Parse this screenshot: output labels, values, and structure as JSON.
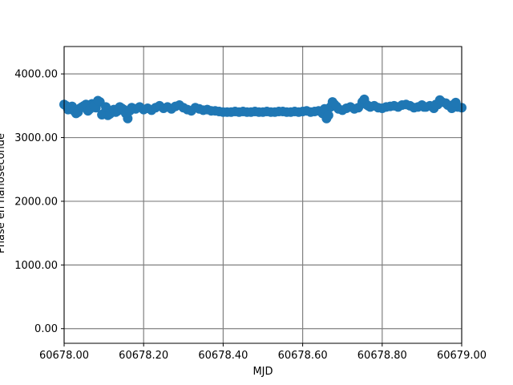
{
  "chart_data": {
    "type": "scatter",
    "title": "",
    "xlabel": "MJD",
    "ylabel": "Phase en nanoseconde",
    "xlim": [
      60678.0,
      60679.0
    ],
    "ylim": [
      -230,
      4430
    ],
    "xticks": [
      60678.0,
      60678.2,
      60678.4,
      60678.6,
      60678.8,
      60679.0
    ],
    "xtick_labels": [
      "60678.00",
      "60678.20",
      "60678.40",
      "60678.60",
      "60678.80",
      "60679.00"
    ],
    "yticks": [
      0,
      1000,
      2000,
      3000,
      4000
    ],
    "ytick_labels": [
      "0.00",
      "1000.00",
      "2000.00",
      "3000.00",
      "4000.00"
    ],
    "grid": true,
    "colors": {
      "marker": "#1f77b4",
      "grid": "#808080",
      "axes": "#000000"
    },
    "series": [
      {
        "x": [
          60678.0,
          60678.01,
          60678.02,
          60678.03,
          60678.04,
          60678.05,
          60678.06,
          60678.07,
          60678.08,
          60678.09,
          60678.1,
          60678.11,
          60678.12,
          60678.13,
          60678.14,
          60678.15,
          60678.16,
          60678.17,
          60678.18,
          60678.19,
          60678.2,
          60678.21,
          60678.22,
          60678.23,
          60678.24,
          60678.25,
          60678.26,
          60678.27,
          60678.28,
          60678.29,
          60678.3,
          60678.31,
          60678.32,
          60678.33,
          60678.34,
          60678.35,
          60678.36,
          60678.37,
          60678.38,
          60678.39,
          60678.4,
          60678.41,
          60678.42,
          60678.43,
          60678.44,
          60678.45,
          60678.46,
          60678.47,
          60678.48,
          60678.49,
          60678.5,
          60678.51,
          60678.52,
          60678.53,
          60678.54,
          60678.55,
          60678.56,
          60678.57,
          60678.58,
          60678.59,
          60678.6,
          60678.61,
          60678.62,
          60678.63,
          60678.64,
          60678.65,
          60678.66,
          60678.67,
          60678.68,
          60678.69,
          60678.7,
          60678.71,
          60678.72,
          60678.73,
          60678.74,
          60678.75,
          60678.76,
          60678.77,
          60678.78,
          60678.79,
          60678.8,
          60678.81,
          60678.82,
          60678.83,
          60678.84,
          60678.85,
          60678.86,
          60678.87,
          60678.88,
          60678.89,
          60678.9,
          60678.91,
          60678.92,
          60678.93,
          60678.94,
          60678.95,
          60678.96,
          60678.97,
          60678.98,
          60678.99,
          60679.0,
          60678.005,
          60678.015,
          60678.025,
          60678.035,
          60678.045,
          60678.055,
          60678.065,
          60678.075,
          60678.085,
          60678.095,
          60678.105,
          60678.115,
          60678.125,
          60678.135,
          60678.145,
          60678.155,
          60678.165,
          60678.655,
          60678.665,
          60678.675,
          60678.685,
          60678.755,
          60678.765,
          60678.905,
          60678.935,
          60678.945,
          60678.965,
          60678.975,
          60678.985
        ],
        "y": [
          3520,
          3440,
          3490,
          3380,
          3460,
          3500,
          3420,
          3530,
          3470,
          3560,
          3380,
          3350,
          3420,
          3400,
          3480,
          3440,
          3300,
          3470,
          3450,
          3480,
          3440,
          3460,
          3430,
          3470,
          3500,
          3460,
          3480,
          3450,
          3490,
          3510,
          3470,
          3440,
          3420,
          3470,
          3450,
          3430,
          3440,
          3420,
          3420,
          3410,
          3400,
          3400,
          3400,
          3410,
          3400,
          3410,
          3400,
          3400,
          3410,
          3400,
          3400,
          3410,
          3400,
          3400,
          3410,
          3410,
          3400,
          3400,
          3410,
          3400,
          3410,
          3420,
          3400,
          3410,
          3420,
          3380,
          3300,
          3480,
          3520,
          3450,
          3430,
          3460,
          3480,
          3450,
          3470,
          3560,
          3520,
          3480,
          3500,
          3470,
          3460,
          3480,
          3490,
          3500,
          3480,
          3510,
          3520,
          3500,
          3470,
          3480,
          3510,
          3480,
          3500,
          3460,
          3520,
          3560,
          3540,
          3500,
          3520,
          3480,
          3470,
          3500,
          3470,
          3420,
          3400,
          3480,
          3520,
          3450,
          3500,
          3580,
          3360,
          3480,
          3370,
          3440,
          3420,
          3460,
          3380,
          3420,
          3450,
          3350,
          3560,
          3490,
          3600,
          3500,
          3480,
          3520,
          3590,
          3510,
          3460,
          3550
        ]
      }
    ]
  }
}
